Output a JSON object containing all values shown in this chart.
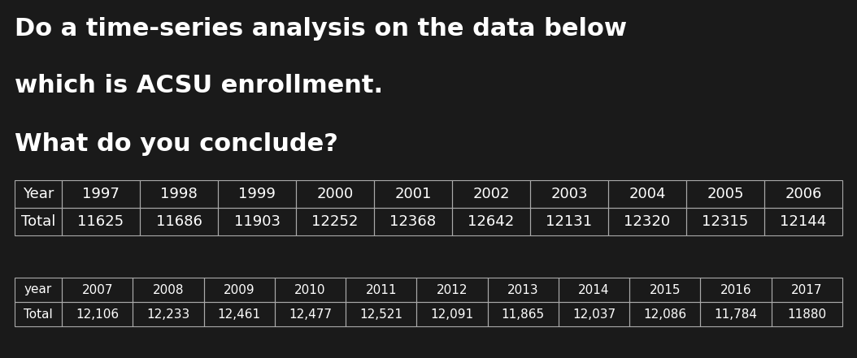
{
  "title_lines": [
    "Do a time-series analysis on the data below",
    "which is ACSU enrollment.",
    "What do you conclude?"
  ],
  "table1_headers": [
    "Year",
    "1997",
    "1998",
    "1999",
    "2000",
    "2001",
    "2002",
    "2003",
    "2004",
    "2005",
    "2006"
  ],
  "table1_row_label": "Total",
  "table1_values": [
    "11625",
    "11686",
    "11903",
    "12252",
    "12368",
    "12642",
    "12131",
    "12320",
    "12315",
    "12144"
  ],
  "table2_headers": [
    "year",
    "2007",
    "2008",
    "2009",
    "2010",
    "2011",
    "2012",
    "2013",
    "2014",
    "2015",
    "2016",
    "2017"
  ],
  "table2_row_label": "Total",
  "table2_values": [
    "12,106",
    "12,233",
    "12,461",
    "12,477",
    "12,521",
    "12,091",
    "11,865",
    "12,037",
    "12,086",
    "11,784",
    "11880"
  ],
  "bg_color": "#1a1a1a",
  "text_color": "#ffffff",
  "table_border_color": "#aaaaaa",
  "title_fontsize": 22,
  "table1_fontsize": 13,
  "table2_fontsize": 11
}
